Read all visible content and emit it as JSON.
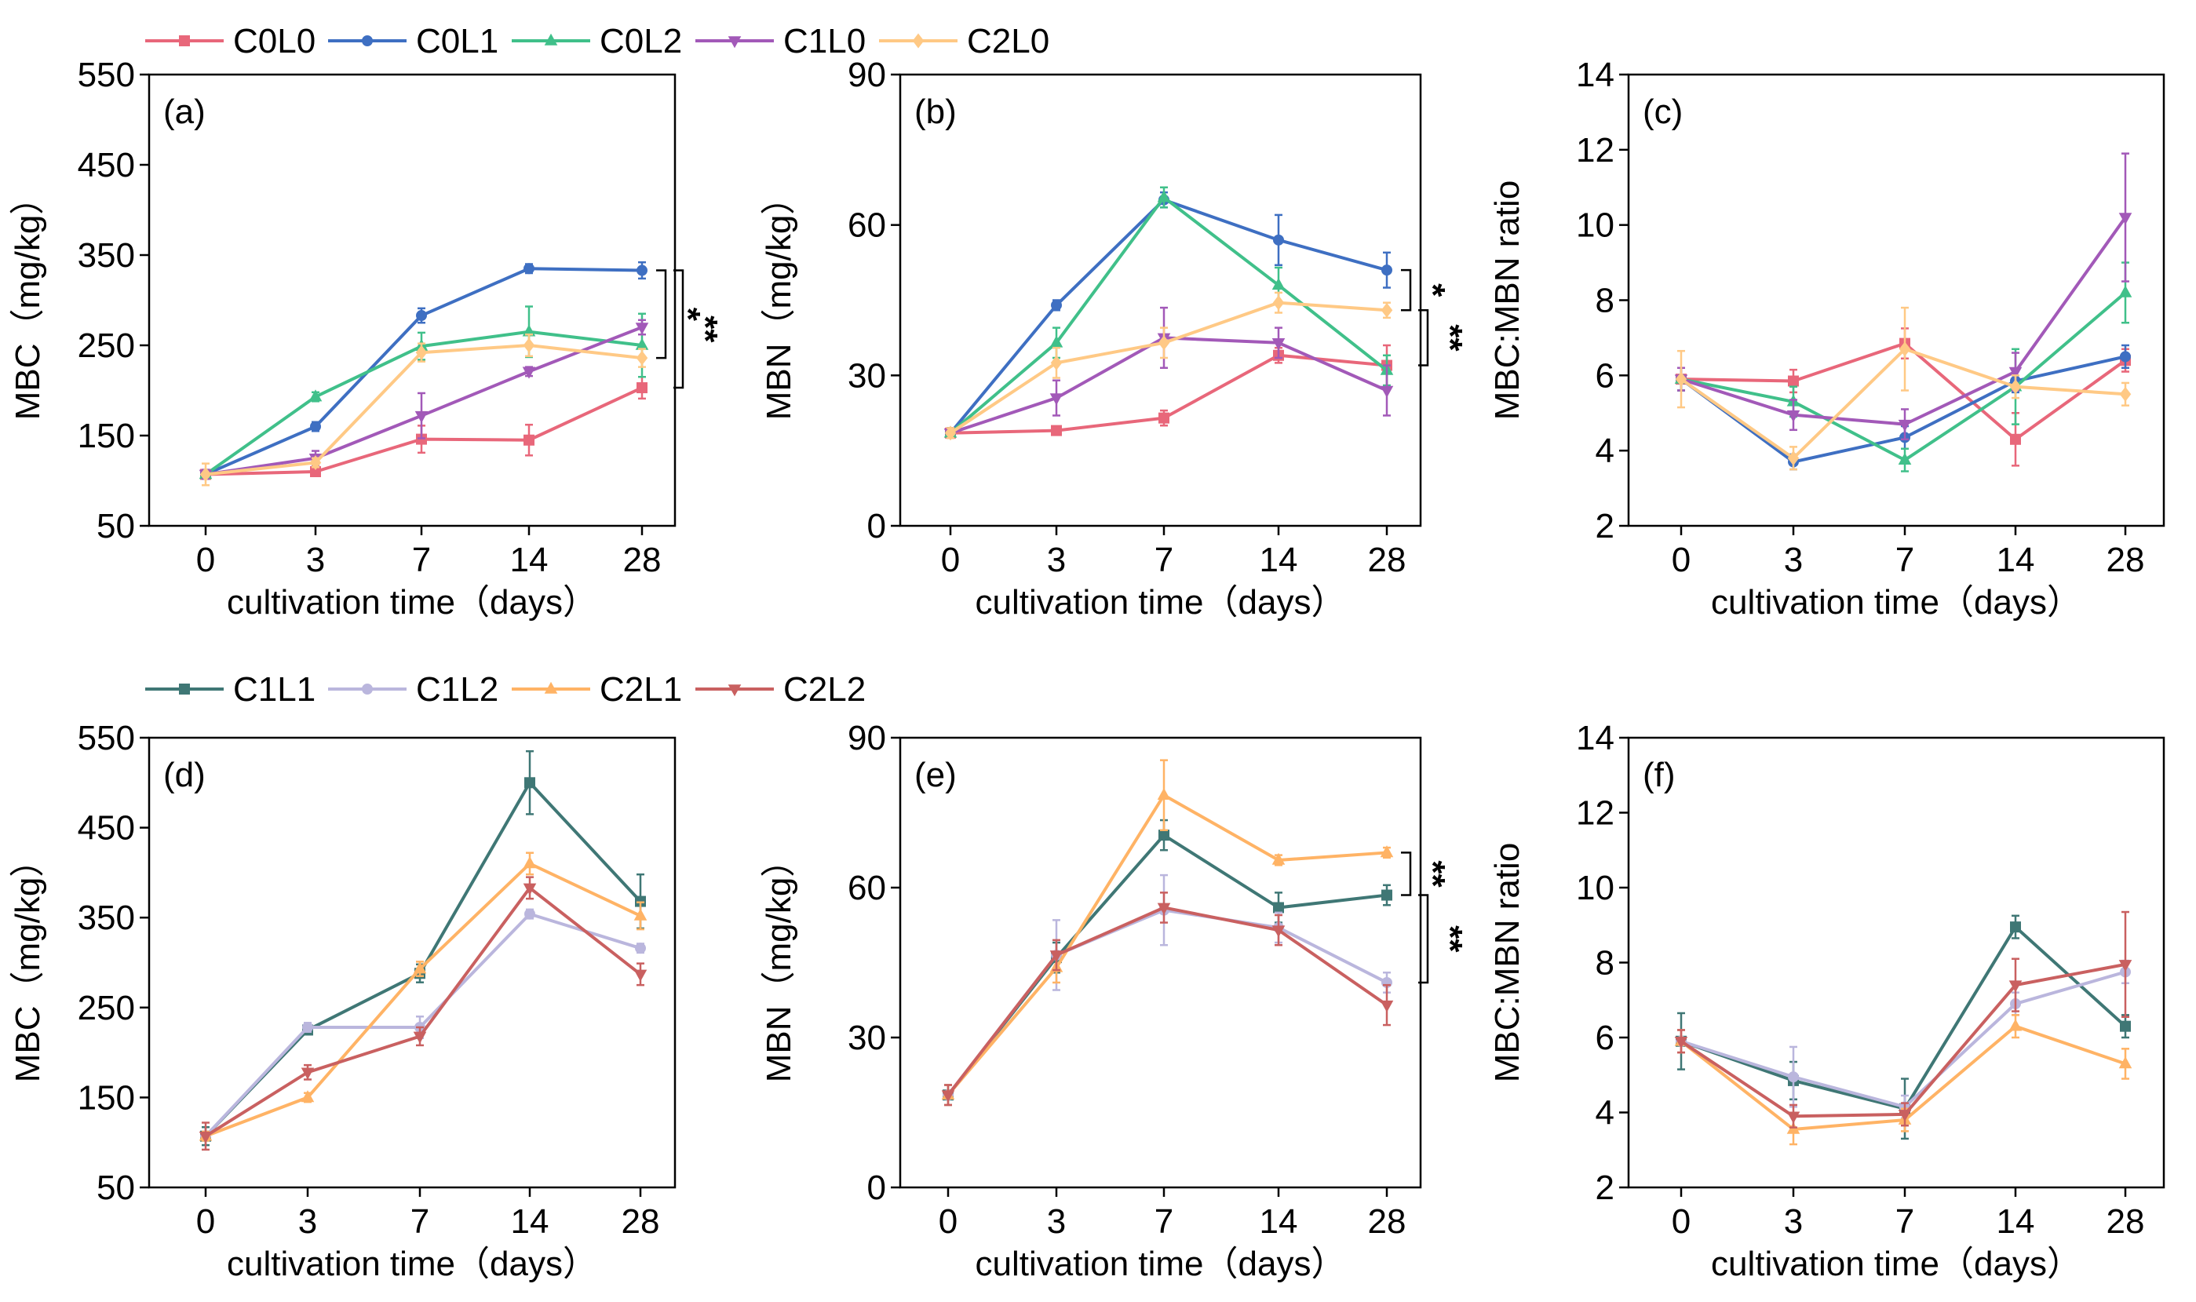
{
  "colors": {
    "C0L0": "#e8677a",
    "C0L1": "#3e6fc2",
    "C0L2": "#40c08a",
    "C1L0": "#a259b8",
    "C2L0": "#ffc985",
    "C1L1": "#3f7775",
    "C1L2": "#bab6dd",
    "C2L1": "#ffb365",
    "C2L2": "#c96060"
  },
  "legends": [
    {
      "entries": [
        {
          "label": "C0L0",
          "color": "#e8677a",
          "marker": "square"
        },
        {
          "label": "C0L1",
          "color": "#3e6fc2",
          "marker": "circle"
        },
        {
          "label": "C0L2",
          "color": "#40c08a",
          "marker": "triangle-up"
        },
        {
          "label": "C1L0",
          "color": "#a259b8",
          "marker": "triangle-down"
        },
        {
          "label": "C2L0",
          "color": "#ffc985",
          "marker": "diamond"
        }
      ]
    },
    {
      "entries": [
        {
          "label": "C1L1",
          "color": "#3f7775",
          "marker": "square"
        },
        {
          "label": "C1L2",
          "color": "#bab6dd",
          "marker": "circle"
        },
        {
          "label": "C2L1",
          "color": "#ffb365",
          "marker": "triangle-up"
        },
        {
          "label": "C2L2",
          "color": "#c96060",
          "marker": "triangle-down"
        }
      ]
    }
  ],
  "chart_data": [
    {
      "id": "a",
      "type": "line",
      "panel_label": "(a)",
      "xlabel": "cultivation time（days）",
      "ylabel": "MBC（mg/kg）",
      "categories": [
        "0",
        "3",
        "7",
        "14",
        "28"
      ],
      "ylim": [
        50,
        550
      ],
      "yticks": [
        50,
        150,
        250,
        350,
        450,
        550
      ],
      "series": [
        {
          "name": "C0L0",
          "marker": "square",
          "values": [
            107,
            110,
            146,
            145,
            203
          ],
          "errors": [
            5,
            5,
            15,
            17,
            12
          ]
        },
        {
          "name": "C0L1",
          "marker": "circle",
          "values": [
            107,
            160,
            283,
            335,
            333
          ],
          "errors": [
            5,
            5,
            8,
            5,
            9
          ]
        },
        {
          "name": "C0L2",
          "marker": "triangle-up",
          "values": [
            107,
            193,
            249,
            265,
            250
          ],
          "errors": [
            5,
            5,
            15,
            28,
            35
          ]
        },
        {
          "name": "C1L0",
          "marker": "triangle-down",
          "values": [
            107,
            125,
            172,
            221,
            270
          ],
          "errors": [
            5,
            8,
            25,
            5,
            8
          ]
        },
        {
          "name": "C2L0",
          "marker": "diamond",
          "values": [
            107,
            120,
            242,
            250,
            236
          ],
          "errors": [
            12,
            5,
            10,
            12,
            10
          ]
        }
      ],
      "significance": [
        {
          "label": "*",
          "from": "C0L1",
          "to": "C2L0"
        },
        {
          "label": "**",
          "from": "C0L1",
          "to": "C0L0"
        }
      ]
    },
    {
      "id": "b",
      "type": "line",
      "panel_label": "(b)",
      "xlabel": "cultivation time（days）",
      "ylabel": "MBN（mg/kg）",
      "categories": [
        "0",
        "3",
        "7",
        "14",
        "28"
      ],
      "ylim": [
        0,
        90
      ],
      "yticks": [
        0,
        30,
        60,
        90
      ],
      "series": [
        {
          "name": "C0L0",
          "marker": "square",
          "values": [
            18.5,
            19,
            21.5,
            34,
            32
          ],
          "errors": [
            1,
            0.5,
            1.5,
            1.5,
            4
          ]
        },
        {
          "name": "C0L1",
          "marker": "circle",
          "values": [
            18.5,
            44,
            65,
            57,
            51
          ],
          "errors": [
            1,
            1,
            1.5,
            5,
            3.5
          ]
        },
        {
          "name": "C0L2",
          "marker": "triangle-up",
          "values": [
            18.5,
            36.5,
            65.5,
            48,
            31
          ],
          "errors": [
            1,
            3,
            2,
            3.5,
            3
          ]
        },
        {
          "name": "C1L0",
          "marker": "triangle-down",
          "values": [
            18.5,
            25.5,
            37.5,
            36.5,
            27
          ],
          "errors": [
            1,
            3.5,
            6,
            3,
            5
          ]
        },
        {
          "name": "C2L0",
          "marker": "diamond",
          "values": [
            18.5,
            32.5,
            36.5,
            44.5,
            43
          ],
          "errors": [
            1,
            3,
            3,
            2,
            1.5
          ]
        }
      ],
      "significance": [
        {
          "label": "*",
          "from": "C0L1",
          "to": "C2L0"
        },
        {
          "label": "**",
          "from": "C2L0",
          "to": "C0L0"
        }
      ]
    },
    {
      "id": "c",
      "type": "line",
      "panel_label": "(c)",
      "xlabel": "cultivation time（days）",
      "ylabel": "MBC:MBN ratio",
      "categories": [
        "0",
        "3",
        "7",
        "14",
        "28"
      ],
      "ylim": [
        2,
        14
      ],
      "yticks": [
        2,
        4,
        6,
        8,
        10,
        12,
        14
      ],
      "series": [
        {
          "name": "C0L0",
          "marker": "square",
          "values": [
            5.9,
            5.85,
            6.85,
            4.3,
            6.4
          ],
          "errors": [
            0.3,
            0.3,
            0.4,
            0.7,
            0.3
          ]
        },
        {
          "name": "C0L1",
          "marker": "circle",
          "values": [
            5.9,
            3.7,
            4.35,
            5.85,
            6.5
          ],
          "errors": [
            0.3,
            0.2,
            0.3,
            0.3,
            0.3
          ]
        },
        {
          "name": "C0L2",
          "marker": "triangle-up",
          "values": [
            5.9,
            5.3,
            3.75,
            5.7,
            8.2
          ],
          "errors": [
            0.3,
            0.4,
            0.3,
            1,
            0.8
          ]
        },
        {
          "name": "C1L0",
          "marker": "triangle-down",
          "values": [
            5.9,
            4.95,
            4.7,
            6.1,
            10.2
          ],
          "errors": [
            0.3,
            0.4,
            0.4,
            0.5,
            1.7
          ]
        },
        {
          "name": "C2L0",
          "marker": "diamond",
          "values": [
            5.9,
            3.8,
            6.7,
            5.7,
            5.5
          ],
          "errors": [
            0.75,
            0.3,
            1.1,
            0.3,
            0.3
          ]
        }
      ],
      "significance": []
    },
    {
      "id": "d",
      "type": "line",
      "panel_label": "(d)",
      "xlabel": "cultivation time（days）",
      "ylabel": "MBC（mg/kg）",
      "categories": [
        "0",
        "3",
        "7",
        "14",
        "28"
      ],
      "ylim": [
        50,
        550
      ],
      "yticks": [
        50,
        150,
        250,
        350,
        450,
        550
      ],
      "series": [
        {
          "name": "C1L1",
          "marker": "square",
          "values": [
            107,
            225,
            288,
            500,
            368
          ],
          "errors": [
            10,
            5,
            10,
            35,
            30
          ]
        },
        {
          "name": "C1L2",
          "marker": "circle",
          "values": [
            107,
            228,
            228,
            354,
            316
          ],
          "errors": [
            5,
            5,
            12,
            5,
            5
          ]
        },
        {
          "name": "C2L1",
          "marker": "triangle-up",
          "values": [
            107,
            150,
            293,
            410,
            352
          ],
          "errors": [
            5,
            5,
            8,
            12,
            15
          ]
        },
        {
          "name": "C2L2",
          "marker": "triangle-down",
          "values": [
            107,
            178,
            218,
            383,
            287
          ],
          "errors": [
            15,
            8,
            10,
            12,
            12
          ]
        }
      ],
      "significance": []
    },
    {
      "id": "e",
      "type": "line",
      "panel_label": "(e)",
      "xlabel": "cultivation time（days）",
      "ylabel": "MBN（mg/kg）",
      "categories": [
        "0",
        "3",
        "7",
        "14",
        "28"
      ],
      "ylim": [
        0,
        90
      ],
      "yticks": [
        0,
        30,
        60,
        90
      ],
      "series": [
        {
          "name": "C1L1",
          "marker": "square",
          "values": [
            18.5,
            46,
            70.5,
            56,
            58.5
          ],
          "errors": [
            2,
            3,
            3,
            3,
            2
          ]
        },
        {
          "name": "C1L2",
          "marker": "circle",
          "values": [
            18.5,
            46.5,
            55.5,
            52,
            41
          ],
          "errors": [
            2,
            7,
            7,
            3,
            2
          ]
        },
        {
          "name": "C2L1",
          "marker": "triangle-up",
          "values": [
            18.5,
            44,
            78.5,
            65.5,
            67
          ],
          "errors": [
            2,
            3,
            7,
            1,
            1
          ]
        },
        {
          "name": "C2L2",
          "marker": "triangle-down",
          "values": [
            18.5,
            46.5,
            56,
            51.5,
            36.5
          ],
          "errors": [
            2,
            3,
            3,
            3,
            4
          ]
        }
      ],
      "significance": [
        {
          "label": "**",
          "from": "C2L1",
          "to": "C1L1"
        },
        {
          "label": "**",
          "from": "C1L1",
          "to": "C1L2"
        }
      ]
    },
    {
      "id": "f",
      "type": "line",
      "panel_label": "(f)",
      "xlabel": "cultivation time（days）",
      "ylabel": "MBC:MBN ratio",
      "categories": [
        "0",
        "3",
        "7",
        "14",
        "28"
      ],
      "ylim": [
        2,
        14
      ],
      "yticks": [
        2,
        4,
        6,
        8,
        10,
        12,
        14
      ],
      "series": [
        {
          "name": "C1L1",
          "marker": "square",
          "values": [
            5.9,
            4.85,
            4.1,
            8.95,
            6.3
          ],
          "errors": [
            0.75,
            0.5,
            0.8,
            0.3,
            0.3
          ]
        },
        {
          "name": "C1L2",
          "marker": "circle",
          "values": [
            5.9,
            4.95,
            4.15,
            6.9,
            7.75
          ],
          "errors": [
            0.3,
            0.8,
            0.3,
            0.3,
            0.3
          ]
        },
        {
          "name": "C2L1",
          "marker": "triangle-up",
          "values": [
            5.9,
            3.55,
            3.8,
            6.3,
            5.3
          ],
          "errors": [
            0.3,
            0.4,
            0.3,
            0.3,
            0.4
          ]
        },
        {
          "name": "C2L2",
          "marker": "triangle-down",
          "values": [
            5.9,
            3.9,
            3.95,
            7.4,
            7.95
          ],
          "errors": [
            0.3,
            0.3,
            0.3,
            0.7,
            1.4
          ]
        }
      ],
      "significance": []
    }
  ]
}
